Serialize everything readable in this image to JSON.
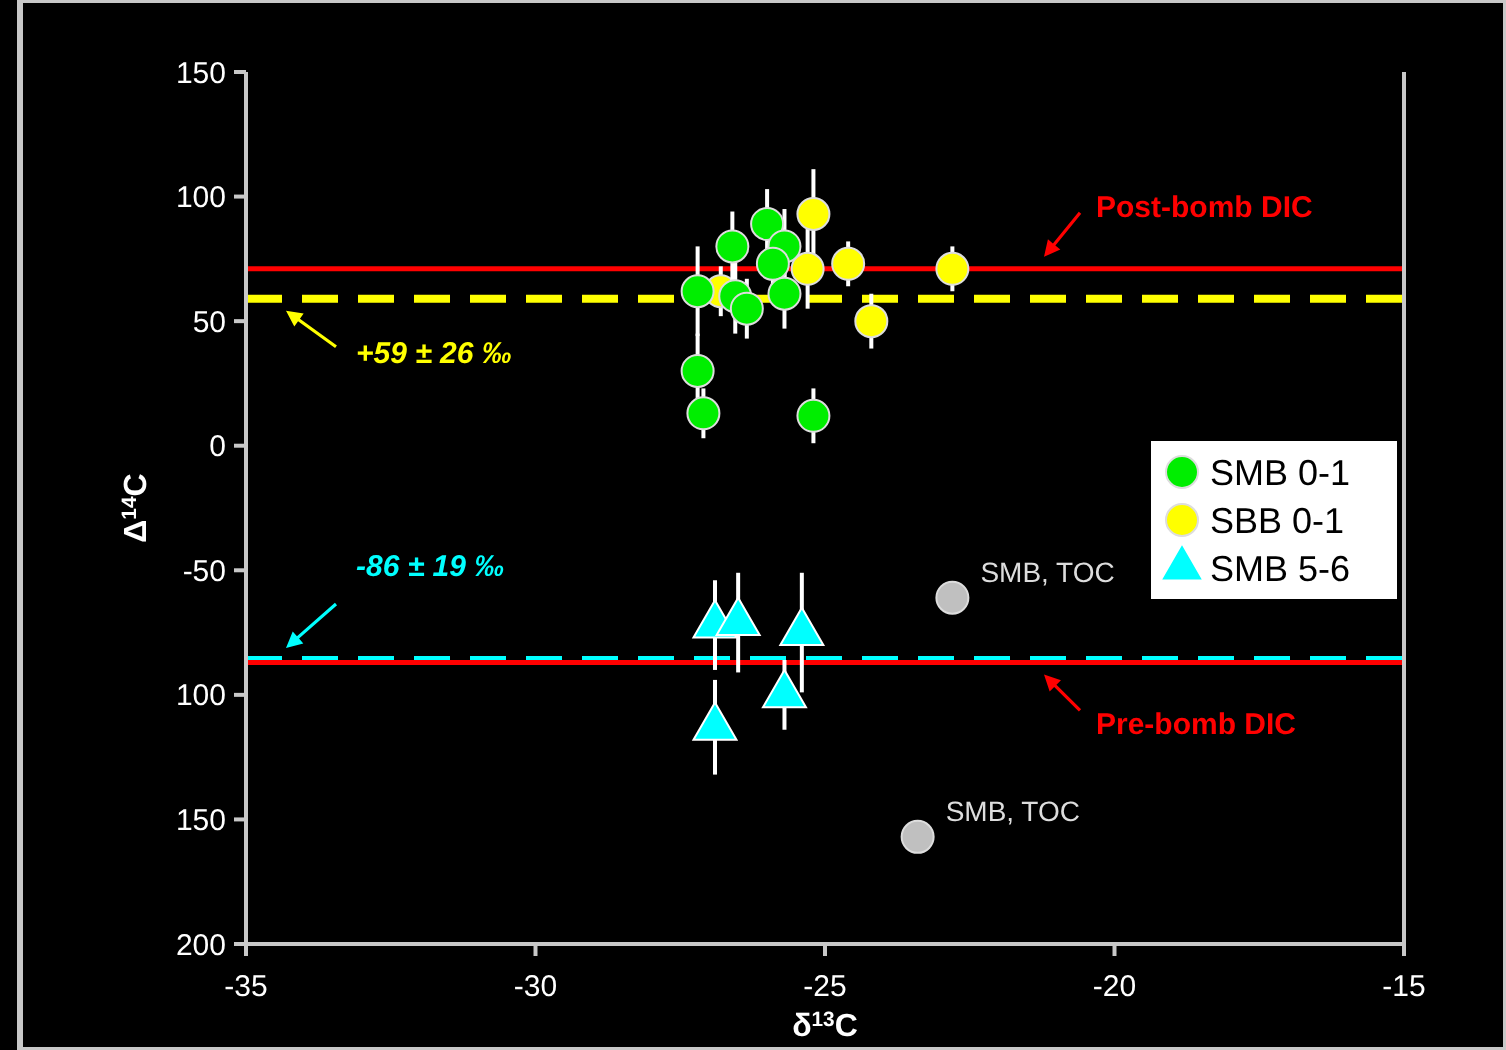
{
  "chart_data": {
    "type": "scatter",
    "xlabel": "δ$^{13}$C",
    "ylabel": "Δ$^{14}$C",
    "xlim": [
      -35,
      -15
    ],
    "xticks": [
      -35,
      -30,
      -25,
      -20,
      -15
    ],
    "ylim": [
      -200,
      150
    ],
    "yticks": [
      150,
      100,
      50,
      0,
      -50,
      {
        "value": -100,
        "label": "100"
      },
      {
        "value": -150,
        "label": "150"
      },
      {
        "value": -200,
        "label": "200"
      }
    ],
    "grid": false,
    "legend": "right",
    "series": [
      {
        "name": "SMB 0-1",
        "color": "#00ee00",
        "marker": "circle",
        "x": [
          -27.2,
          -27.2,
          -27.1,
          -26.6,
          -26.55,
          -26.35,
          -26.0,
          -25.7,
          -25.9,
          -25.7,
          -25.2
        ],
        "values": [
          62,
          30,
          13,
          80,
          60,
          55,
          89,
          80,
          73,
          61,
          12
        ],
        "errors": [
          18,
          15,
          10,
          14,
          15,
          12,
          14,
          15,
          14,
          14,
          11
        ]
      },
      {
        "name": "SBB 0-1",
        "color": "#ffff00",
        "marker": "circle",
        "x": [
          -26.8,
          -25.2,
          -25.3,
          -24.6,
          -24.2,
          -22.8
        ],
        "values": [
          62,
          93,
          71,
          73,
          50,
          71
        ],
        "errors": [
          10,
          18,
          16,
          9,
          11,
          9
        ]
      },
      {
        "name": "SMB 5-6",
        "color": "#00ffff",
        "marker": "triangle",
        "x": [
          -26.9,
          -26.5,
          -25.4,
          -25.7,
          -26.9
        ],
        "values": [
          -72,
          -71,
          -75,
          -100,
          -113
        ],
        "errors": [
          18,
          20,
          24,
          14,
          19
        ]
      },
      {
        "color": "#c0c0c0",
        "marker": "circle",
        "x": [
          -22.8,
          -23.4
        ],
        "values": [
          -61,
          -157
        ]
      }
    ],
    "ref_lines": [
      {
        "axis": "y",
        "value": 71,
        "label": "Post-bomb DIC",
        "color": "#ff0000",
        "line_style": "solid"
      },
      {
        "axis": "y",
        "value": 59,
        "label": "+59 ± 26 ‰",
        "color": "#ffff00",
        "line_style": "dashed"
      },
      {
        "axis": "y",
        "value": -86,
        "label": "-86 ± 19 ‰",
        "color": "#00ffff",
        "line_style": "dashed"
      },
      {
        "axis": "y",
        "value": -87,
        "label": "Pre-bomb DIC",
        "color": "#ff0000",
        "line_style": "solid"
      }
    ],
    "annotations": [
      {
        "text": "SMB, TOC",
        "x": -22.8,
        "y": -61
      },
      {
        "text": "SMB, TOC",
        "x": -23.4,
        "y": -157
      }
    ]
  }
}
